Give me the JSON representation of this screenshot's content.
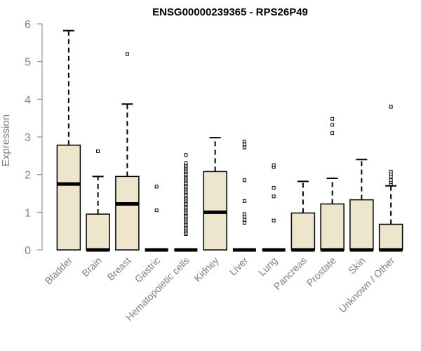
{
  "chart_data": {
    "type": "boxplot",
    "title": "ENSG00000239365 - RPS26P49",
    "ylabel": "Expression",
    "xlabel": "",
    "ylim": [
      0,
      6
    ],
    "yticks": [
      0,
      1,
      2,
      3,
      4,
      5,
      6
    ],
    "box_color": "#ede6cc",
    "categories": [
      "Bladder",
      "Brain",
      "Breast",
      "Gastric",
      "Hematopoietic cells",
      "Kidney",
      "Liver",
      "Lung",
      "Pancreas",
      "Prostate",
      "Skin",
      "Unknown / Other"
    ],
    "boxes": [
      {
        "q1": 0,
        "median": 1.75,
        "q3": 2.78,
        "whisker_low": 0,
        "whisker_high": 5.82,
        "outliers": []
      },
      {
        "q1": 0,
        "median": 0,
        "q3": 0.95,
        "whisker_low": 0,
        "whisker_high": 1.95,
        "outliers": [
          2.62
        ]
      },
      {
        "q1": 0,
        "median": 1.22,
        "q3": 1.95,
        "whisker_low": 0,
        "whisker_high": 3.87,
        "outliers": [
          5.2
        ]
      },
      {
        "q1": 0,
        "median": 0,
        "q3": 0,
        "whisker_low": 0,
        "whisker_high": 0,
        "outliers": [
          1.05,
          1.68
        ]
      },
      {
        "q1": 0,
        "median": 0,
        "q3": 0,
        "whisker_low": 0,
        "whisker_high": 0,
        "outliers": [
          0.42,
          0.46,
          0.5,
          0.54,
          0.58,
          0.62,
          0.66,
          0.7,
          0.74,
          0.78,
          0.82,
          0.86,
          0.9,
          0.94,
          0.98,
          1.02,
          1.06,
          1.1,
          1.14,
          1.18,
          1.22,
          1.26,
          1.3,
          1.34,
          1.38,
          1.42,
          1.46,
          1.5,
          1.54,
          1.58,
          1.62,
          1.66,
          1.7,
          1.74,
          1.78,
          1.82,
          1.86,
          1.9,
          1.94,
          1.98,
          2.02,
          2.06,
          2.1,
          2.14,
          2.18,
          2.22,
          2.26,
          2.3,
          2.52
        ]
      },
      {
        "q1": 0,
        "median": 1.0,
        "q3": 2.08,
        "whisker_low": 0,
        "whisker_high": 2.98,
        "outliers": []
      },
      {
        "q1": 0,
        "median": 0,
        "q3": 0,
        "whisker_low": 0,
        "whisker_high": 0,
        "outliers": [
          0.72,
          0.8,
          0.88,
          0.95,
          1.3,
          1.85,
          2.72,
          2.8,
          2.88
        ]
      },
      {
        "q1": 0,
        "median": 0,
        "q3": 0,
        "whisker_low": 0,
        "whisker_high": 0,
        "outliers": [
          0.78,
          1.42,
          1.65,
          2.2,
          2.25
        ]
      },
      {
        "q1": 0,
        "median": 0,
        "q3": 0.98,
        "whisker_low": 0,
        "whisker_high": 1.82,
        "outliers": []
      },
      {
        "q1": 0,
        "median": 0,
        "q3": 1.22,
        "whisker_low": 0,
        "whisker_high": 1.9,
        "outliers": [
          3.1,
          3.32,
          3.48
        ]
      },
      {
        "q1": 0,
        "median": 0,
        "q3": 1.33,
        "whisker_low": 0,
        "whisker_high": 2.4,
        "outliers": []
      },
      {
        "q1": 0,
        "median": 0,
        "q3": 0.68,
        "whisker_low": 0,
        "whisker_high": 1.7,
        "outliers": [
          1.75,
          1.8,
          1.85,
          1.95,
          2.02,
          2.08,
          3.8
        ]
      }
    ]
  }
}
